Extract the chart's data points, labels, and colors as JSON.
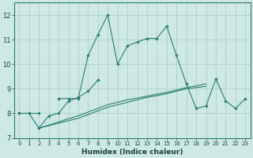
{
  "xlabel": "Humidex (Indice chaleur)",
  "x": [
    0,
    1,
    2,
    3,
    4,
    5,
    6,
    7,
    8,
    9,
    10,
    11,
    12,
    13,
    14,
    15,
    16,
    17,
    18,
    19,
    20,
    21,
    22,
    23
  ],
  "line1": [
    8.0,
    8.0,
    8.0,
    null,
    8.6,
    8.6,
    8.6,
    10.35,
    11.2,
    12.0,
    10.0,
    10.75,
    10.9,
    11.05,
    11.05,
    11.55,
    10.35,
    9.2,
    8.2,
    8.3,
    9.4,
    8.5,
    8.2,
    8.6
  ],
  "line2": [
    8.0,
    8.0,
    7.4,
    7.9,
    8.0,
    8.5,
    8.65,
    8.9,
    9.35,
    null,
    null,
    null,
    null,
    null,
    null,
    null,
    null,
    null,
    null,
    null,
    null,
    null,
    null,
    null
  ],
  "line3": [
    8.0,
    null,
    7.4,
    7.5,
    7.6,
    7.7,
    7.8,
    7.95,
    8.1,
    8.25,
    8.35,
    8.45,
    8.55,
    8.65,
    8.72,
    8.8,
    8.9,
    9.0,
    9.05,
    9.1,
    null,
    null,
    null,
    null
  ],
  "line4": [
    8.0,
    null,
    7.4,
    7.52,
    7.65,
    7.78,
    7.9,
    8.05,
    8.2,
    8.35,
    8.45,
    8.55,
    8.62,
    8.7,
    8.78,
    8.85,
    8.95,
    9.05,
    9.12,
    9.2,
    null,
    null,
    null,
    null
  ],
  "ylim": [
    7.0,
    12.5
  ],
  "yticks": [
    7,
    8,
    9,
    10,
    11,
    12
  ],
  "xlim": [
    -0.5,
    23.5
  ],
  "bg_color": "#cde8e5",
  "line_color": "#2d7d6e",
  "grid_color": "#a8ccc8",
  "spine_color": "#2d7d6e"
}
